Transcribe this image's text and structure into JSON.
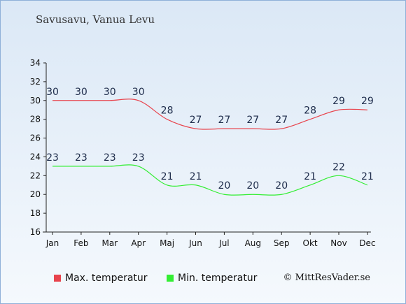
{
  "title": "Savusavu, Vanua Levu",
  "copyright": "© MittResVader.se",
  "chart_data": {
    "type": "line",
    "categories": [
      "Jan",
      "Feb",
      "Mar",
      "Apr",
      "Maj",
      "Jun",
      "Jul",
      "Aug",
      "Sep",
      "Okt",
      "Nov",
      "Dec"
    ],
    "ylim": [
      16,
      34
    ],
    "yticks": [
      16,
      18,
      20,
      22,
      24,
      26,
      28,
      30,
      32,
      34
    ],
    "grid": false,
    "legend_position": "bottom-left",
    "series": [
      {
        "name": "Max. temperatur",
        "color": "#e8444d",
        "values": [
          30,
          30,
          30,
          30,
          28,
          27,
          27,
          27,
          27,
          28,
          29,
          29
        ]
      },
      {
        "name": "Min. temperatur",
        "color": "#33ee33",
        "values": [
          23,
          23,
          23,
          23,
          21,
          21,
          20,
          20,
          20,
          21,
          22,
          21
        ]
      }
    ]
  }
}
